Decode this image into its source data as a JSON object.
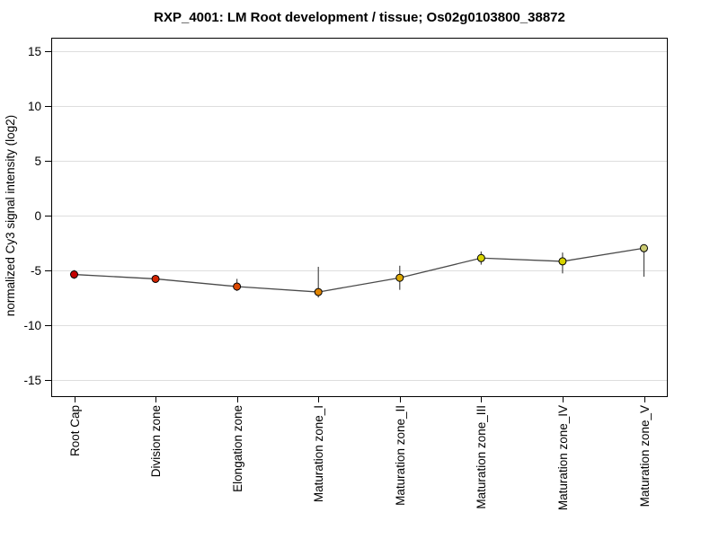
{
  "chart_data": {
    "type": "line",
    "title": "RXP_4001: LM Root development / tissue; Os02g0103800_38872",
    "ylabel": "normalized Cy3 signal intensity (log2)",
    "xlabel": "",
    "ylim": [
      -16.5,
      16.2
    ],
    "yticks": [
      15,
      10,
      5,
      0,
      -5,
      -10,
      -15
    ],
    "grid": true,
    "legend_position": "none",
    "categories": [
      "Root Cap",
      "Division zone",
      "Elongation zone",
      "Maturation zone_I",
      "Maturation zone_II",
      "Maturation zone_III",
      "Maturation zone_IV",
      "Maturation zone_V"
    ],
    "series": [
      {
        "name": "Os02g0103800_38872",
        "values": [
          -5.4,
          -5.8,
          -6.5,
          -7.0,
          -5.7,
          -3.9,
          -4.2,
          -3.0
        ],
        "error_high": [
          -5.0,
          -5.5,
          -5.8,
          -4.7,
          -4.6,
          -3.3,
          -3.4,
          -2.7
        ],
        "error_low": [
          -5.8,
          -6.1,
          -6.9,
          -7.5,
          -6.8,
          -4.5,
          -5.3,
          -5.6
        ],
        "marker_colors": [
          "#c40000",
          "#d32400",
          "#dc4800",
          "#e08400",
          "#dda800",
          "#d8d400",
          "#d8d400",
          "#cbcb72"
        ]
      }
    ],
    "colors": {
      "grid": "#dedede",
      "frame": "#000000",
      "line": "#4a4a4a",
      "error_bar": "#4a4a4a",
      "marker_stroke": "#000000",
      "text": "#000000"
    }
  }
}
